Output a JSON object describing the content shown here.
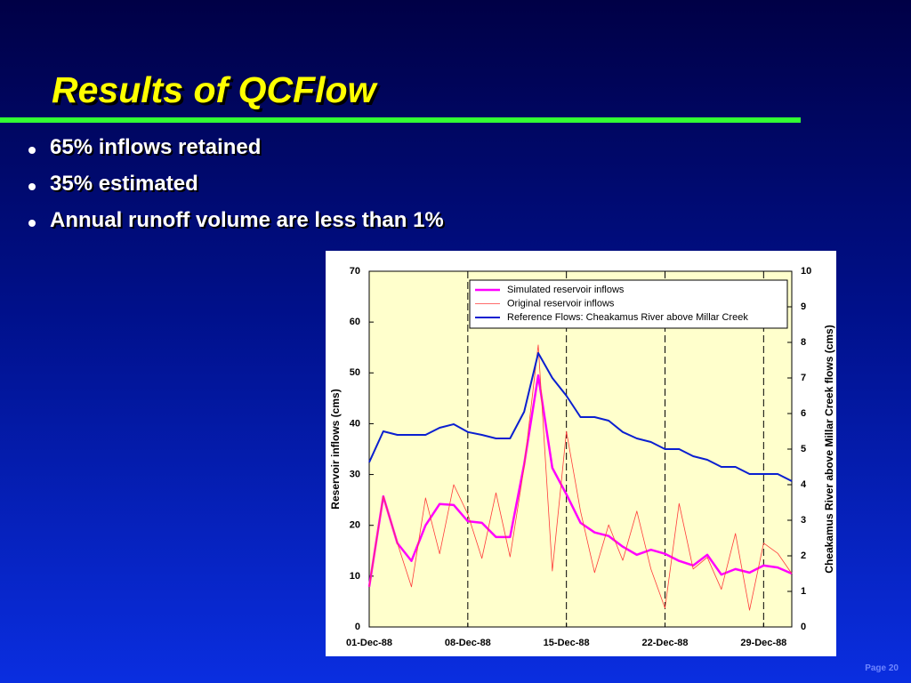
{
  "slide": {
    "title": "Results of QCFlow",
    "bullets": [
      "65% inflows retained",
      "35% estimated",
      "Annual runoff volume are less than 1%"
    ],
    "page_label": "Page 20"
  },
  "chart_data": {
    "type": "line",
    "categories": [
      "01-Dec-88",
      null,
      null,
      null,
      null,
      null,
      null,
      "08-Dec-88",
      null,
      null,
      null,
      null,
      null,
      null,
      "15-Dec-88",
      null,
      null,
      null,
      null,
      null,
      null,
      "22-Dec-88",
      null,
      null,
      null,
      null,
      null,
      null,
      "29-Dec-88",
      null,
      null
    ],
    "y_label": "Reservoir inflows (cms)",
    "y2_label": "Cheakamus River above Millar Creek flows (cms)",
    "ylim": [
      0,
      70
    ],
    "yticks": [
      0,
      10,
      20,
      30,
      40,
      50,
      60,
      70
    ],
    "y2lim": [
      0,
      10
    ],
    "y2ticks": [
      0,
      1,
      2,
      3,
      4,
      5,
      6,
      7,
      8,
      9,
      10
    ],
    "grid": true,
    "legend": "upper right",
    "series": [
      {
        "name": "Simulated reservoir inflows",
        "color": "#ff00ff",
        "values": [
          7.9,
          25.7,
          16.5,
          13.0,
          20.0,
          24.2,
          24.0,
          20.8,
          20.5,
          17.7,
          17.7,
          32.0,
          49.5,
          31.3,
          26.1,
          20.5,
          18.6,
          17.9,
          15.8,
          14.2,
          15.2,
          14.4,
          13.0,
          12.1,
          14.2,
          10.3,
          11.4,
          10.7,
          12.1,
          11.7,
          10.5
        ]
      },
      {
        "name": "Original reservoir inflows",
        "color": "#ff3b3b",
        "values": [
          7.9,
          25.7,
          16.5,
          7.9,
          25.4,
          14.4,
          28.0,
          22.2,
          13.5,
          26.4,
          13.8,
          31.5,
          55.5,
          11.0,
          38.5,
          22.8,
          10.7,
          20.1,
          13.1,
          22.8,
          11.4,
          3.7,
          24.3,
          11.4,
          13.7,
          7.4,
          18.4,
          3.3,
          16.5,
          14.5,
          10.5
        ]
      },
      {
        "name": "Reference Flows: Cheakamus River above Millar Creek",
        "color": "#0a1fd0",
        "axis": "y2",
        "values": [
          4.63,
          5.5,
          5.4,
          5.4,
          5.4,
          5.6,
          5.7,
          5.48,
          5.4,
          5.3,
          5.3,
          6.05,
          7.7,
          7.0,
          6.5,
          5.9,
          5.9,
          5.8,
          5.48,
          5.3,
          5.2,
          5.0,
          5.0,
          4.8,
          4.7,
          4.5,
          4.5,
          4.3,
          4.3,
          4.3,
          4.1
        ]
      }
    ]
  }
}
